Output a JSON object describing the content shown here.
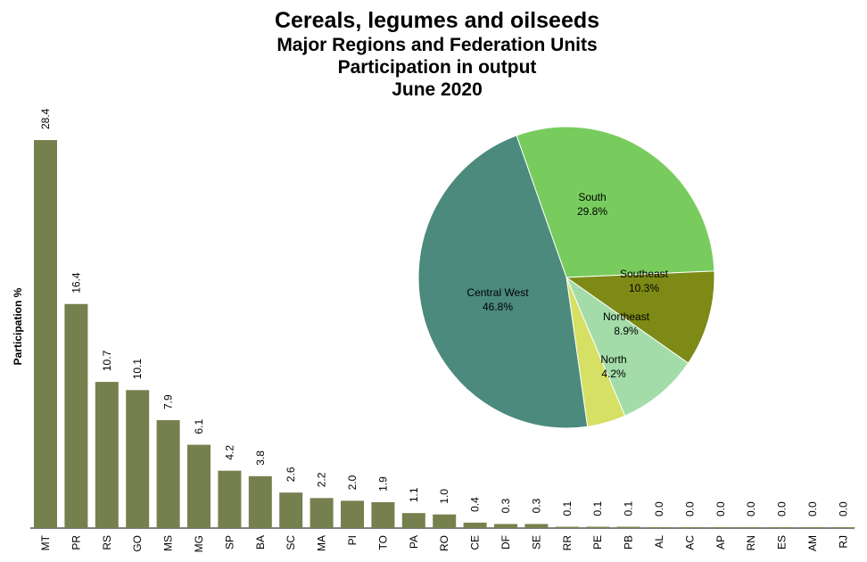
{
  "chart_data": [
    {
      "type": "bar",
      "title": "Cereals, legumes and oilseeds",
      "subtitle": [
        "Major Regions and Federation Units",
        "Participation in output",
        "June 2020"
      ],
      "xlabel": "",
      "ylabel": "Participation %",
      "categories": [
        "MT",
        "PR",
        "RS",
        "GO",
        "MS",
        "MG",
        "SP",
        "BA",
        "SC",
        "MA",
        "PI",
        "TO",
        "PA",
        "RO",
        "CE",
        "DF",
        "SE",
        "RR",
        "PE",
        "PB",
        "AL",
        "AC",
        "AP",
        "RN",
        "ES",
        "AM",
        "RJ"
      ],
      "values": [
        28.4,
        16.4,
        10.7,
        10.1,
        7.9,
        6.1,
        4.2,
        3.8,
        2.6,
        2.2,
        2.0,
        1.9,
        1.1,
        1.0,
        0.4,
        0.3,
        0.3,
        0.1,
        0.1,
        0.1,
        0.0,
        0.0,
        0.0,
        0.0,
        0.0,
        0.0,
        0.0
      ],
      "value_labels": [
        "28.4",
        "16.4",
        "10.7",
        "10.1",
        "7.9",
        "6.1",
        "4.2",
        "3.8",
        "2.6",
        "2.2",
        "2.0",
        "1.9",
        "1.1",
        "1.0",
        "0.4",
        "0.3",
        "0.3",
        "0.1",
        "0.1",
        "0.1",
        "0.0",
        "0.0",
        "0.0",
        "0.0",
        "0.0",
        "0.0",
        "0.0"
      ],
      "ylim": [
        0,
        28.4
      ],
      "grid": false,
      "bar_color": "#76804e"
    },
    {
      "type": "pie",
      "slices": [
        {
          "label": "South",
          "value": 29.8,
          "display": "29.8%",
          "color": "#78cc5e"
        },
        {
          "label": "Southeast",
          "value": 10.3,
          "display": "10.3%",
          "color": "#7d8a16"
        },
        {
          "label": "Northeast",
          "value": 8.9,
          "display": "8.9%",
          "color": "#a3dca9"
        },
        {
          "label": "North",
          "value": 4.2,
          "display": "4.2%",
          "color": "#d5e064"
        },
        {
          "label": "Central West",
          "value": 46.8,
          "display": "46.8%",
          "color": "#4b8a7c"
        }
      ]
    }
  ]
}
